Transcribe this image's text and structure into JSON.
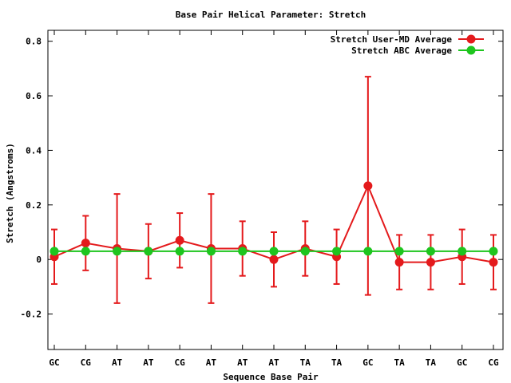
{
  "chart_data": {
    "type": "line",
    "title": "Base Pair Helical Parameter: Stretch",
    "xlabel": "Sequence Base Pair",
    "ylabel": "Stretch (Angstroms)",
    "categories": [
      "GC",
      "CG",
      "AT",
      "AT",
      "CG",
      "AT",
      "AT",
      "AT",
      "TA",
      "TA",
      "GC",
      "TA",
      "TA",
      "GC",
      "CG"
    ],
    "ylim": [
      -0.33,
      0.84
    ],
    "yticks": [
      -0.2,
      0,
      0.2,
      0.4,
      0.6,
      0.8
    ],
    "ytick_labels": [
      "-0.2",
      "0",
      "0.2",
      "0.4",
      "0.6",
      "0.8"
    ],
    "legend_position": "top-right",
    "series": [
      {
        "name": "Stretch User-MD Average",
        "color": "#e41a1c",
        "values": [
          0.01,
          0.06,
          0.04,
          0.03,
          0.07,
          0.04,
          0.04,
          0.0,
          0.04,
          0.01,
          0.27,
          -0.01,
          -0.01,
          0.01,
          -0.01
        ],
        "error_low": [
          -0.09,
          -0.04,
          -0.16,
          -0.07,
          -0.03,
          -0.16,
          -0.06,
          -0.1,
          -0.06,
          -0.09,
          -0.13,
          -0.11,
          -0.11,
          -0.09,
          -0.11
        ],
        "error_high": [
          0.11,
          0.16,
          0.24,
          0.13,
          0.17,
          0.24,
          0.14,
          0.1,
          0.14,
          0.11,
          0.67,
          0.09,
          0.09,
          0.11,
          0.09
        ]
      },
      {
        "name": "Stretch ABC Average",
        "color": "#1ec51e",
        "values": [
          0.03,
          0.03,
          0.03,
          0.03,
          0.03,
          0.03,
          0.03,
          0.03,
          0.03,
          0.03,
          0.03,
          0.03,
          0.03,
          0.03,
          0.03
        ]
      }
    ]
  }
}
